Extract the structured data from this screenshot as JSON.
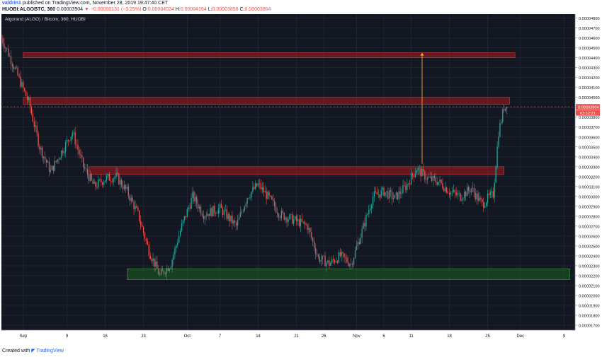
{
  "header": {
    "author": "valdrin1",
    "published": "published on TradingView.com, November 28, 2019 19:47:40 CET",
    "symbol": "HUOBI:ALGOBTC, 360",
    "last_price": "0.00003904",
    "direction_icon": "down-triangle-icon",
    "change": "−0.00000131 (−3.25%)",
    "o_label": "O:",
    "o_value": "0.00004024",
    "h_label": "H:",
    "h_value": "0.00004164",
    "l_label": "L:",
    "l_value": "0.00003858",
    "c_label": "C:",
    "c_value": "0.00003904"
  },
  "footer": {
    "created_with": "Created with",
    "brand": "TradingView"
  },
  "colors": {
    "background": "#131722",
    "grid": "#262b3e",
    "up": "#26a69a",
    "down": "#ef5350",
    "resistance_zone": "#b71c1c",
    "support_zone": "#1b5e20",
    "arrow": "#f9a825",
    "price_label": "#ef5350"
  },
  "chart_data": {
    "type": "candlestick",
    "title": "Algorand (ALGO) / Bitcoin, 360, HUOBI",
    "y_axis_labels": [
      "0.00004800",
      "0.00004700",
      "0.00004600",
      "0.00004500",
      "0.00004400",
      "0.00004300",
      "0.00004200",
      "0.00004100",
      "0.00004000",
      "0.00003900",
      "0.00003800",
      "0.00003700",
      "0.00003600",
      "0.00003500",
      "0.00003400",
      "0.00003300",
      "0.00003200",
      "0.00003100",
      "0.00003000",
      "0.00002900",
      "0.00002800",
      "0.00002700",
      "0.00002600",
      "0.00002500",
      "0.00002400",
      "0.00002300",
      "0.00002200",
      "0.00002100",
      "0.00002000",
      "0.00001900",
      "0.00001800",
      "0.00001700"
    ],
    "ylim": [
      1.65e-05,
      4.84e-05
    ],
    "x_axis_labels": [
      "Sep",
      "9",
      "16",
      "23",
      "Oct",
      "7",
      "14",
      "21",
      "26",
      "Nov",
      "6",
      "11",
      "18",
      "25",
      "Dec",
      "9"
    ],
    "x_axis_dates": [
      "2019-09-01",
      "2019-09-09",
      "2019-09-16",
      "2019-09-23",
      "2019-10-01",
      "2019-10-07",
      "2019-10-14",
      "2019-10-21",
      "2019-10-26",
      "2019-11-01",
      "2019-11-06",
      "2019-11-11",
      "2019-11-18",
      "2019-11-25",
      "2019-12-01",
      "2019-12-09"
    ],
    "xlim": [
      "2019-08-28",
      "2019-12-11"
    ],
    "last_price_label": "0.00003904",
    "countdown_label": "03:12:21",
    "last_price": 3.904e-05,
    "zones": [
      {
        "type": "resistance",
        "y_low": 4.4e-05,
        "y_high": 4.45e-05,
        "x_start": "2019-09-01",
        "x_end": "2019-11-30"
      },
      {
        "type": "resistance",
        "y_low": 3.93e-05,
        "y_high": 4e-05,
        "x_start": "2019-09-01",
        "x_end": "2019-11-29"
      },
      {
        "type": "resistance",
        "y_low": 3.22e-05,
        "y_high": 3.3e-05,
        "x_start": "2019-09-13",
        "x_end": "2019-11-28"
      },
      {
        "type": "support",
        "y_low": 2.16e-05,
        "y_high": 2.27e-05,
        "x_start": "2019-09-20",
        "x_end": "2019-12-10"
      }
    ],
    "arrow": {
      "x": "2019-11-13",
      "y_from": 3.33e-05,
      "y_to": 4.45e-05
    },
    "close_path": [
      [
        "2019-08-28",
        4.6e-05
      ],
      [
        "2019-08-30",
        4.35e-05
      ],
      [
        "2019-09-02",
        3.95e-05
      ],
      [
        "2019-09-04",
        3.5e-05
      ],
      [
        "2019-09-06",
        3.25e-05
      ],
      [
        "2019-09-08",
        3.45e-05
      ],
      [
        "2019-09-10",
        3.65e-05
      ],
      [
        "2019-09-12",
        3.3e-05
      ],
      [
        "2019-09-14",
        3.1e-05
      ],
      [
        "2019-09-16",
        3.18e-05
      ],
      [
        "2019-09-18",
        3.2e-05
      ],
      [
        "2019-09-20",
        3.05e-05
      ],
      [
        "2019-09-22",
        2.82e-05
      ],
      [
        "2019-09-24",
        2.45e-05
      ],
      [
        "2019-09-26",
        2.2e-05
      ],
      [
        "2019-09-28",
        2.32e-05
      ],
      [
        "2019-09-30",
        2.7e-05
      ],
      [
        "2019-10-02",
        3e-05
      ],
      [
        "2019-10-04",
        2.82e-05
      ],
      [
        "2019-10-07",
        2.88e-05
      ],
      [
        "2019-10-10",
        2.7e-05
      ],
      [
        "2019-10-12",
        3e-05
      ],
      [
        "2019-10-14",
        3.12e-05
      ],
      [
        "2019-10-16",
        2.98e-05
      ],
      [
        "2019-10-18",
        2.82e-05
      ],
      [
        "2019-10-21",
        2.75e-05
      ],
      [
        "2019-10-23",
        2.7e-05
      ],
      [
        "2019-10-25",
        2.38e-05
      ],
      [
        "2019-10-27",
        2.32e-05
      ],
      [
        "2019-10-29",
        2.4e-05
      ],
      [
        "2019-10-31",
        2.32e-05
      ],
      [
        "2019-11-02",
        2.65e-05
      ],
      [
        "2019-11-04",
        3e-05
      ],
      [
        "2019-11-06",
        3.05e-05
      ],
      [
        "2019-11-08",
        2.98e-05
      ],
      [
        "2019-11-10",
        3.1e-05
      ],
      [
        "2019-11-12",
        3.28e-05
      ],
      [
        "2019-11-14",
        3.18e-05
      ],
      [
        "2019-11-16",
        3.15e-05
      ],
      [
        "2019-11-18",
        3.05e-05
      ],
      [
        "2019-11-20",
        3e-05
      ],
      [
        "2019-11-22",
        3.08e-05
      ],
      [
        "2019-11-24",
        2.92e-05
      ],
      [
        "2019-11-25",
        2.98e-05
      ],
      [
        "2019-11-26",
        3.02e-05
      ],
      [
        "2019-11-27",
        3.65e-05
      ],
      [
        "2019-11-28",
        3.9e-05
      ]
    ],
    "grid": true
  }
}
